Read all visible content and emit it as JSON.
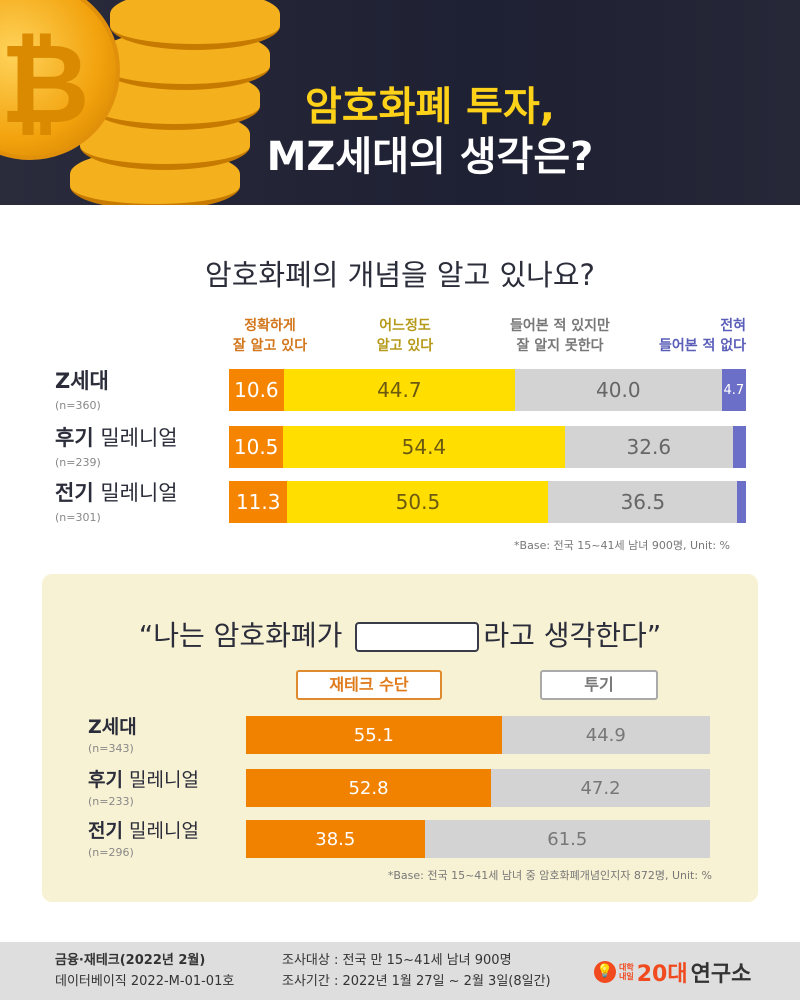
{
  "header": {
    "title_line1": "암호화폐 투자,",
    "title_line2": "MZ세대의 생각은?"
  },
  "chart_data": [
    {
      "type": "bar",
      "orientation": "horizontal",
      "stacked": true,
      "title": "암호화폐의 개념을 알고 있나요?",
      "categories": [
        {
          "bold": "Z세대",
          "light": "",
          "n": "(n=360)"
        },
        {
          "bold": "후기",
          "light": " 밀레니얼",
          "n": "(n=239)"
        },
        {
          "bold": "전기",
          "light": " 밀레니얼",
          "n": "(n=301)"
        }
      ],
      "series": [
        {
          "name": "정확하게\n잘 알고 있다",
          "color": "#f58400",
          "text_color": "#ffffff",
          "label_color": "#d2761b",
          "values": [
            10.6,
            10.5,
            11.3
          ],
          "labels": [
            "10.6",
            "10.5",
            "11.3"
          ]
        },
        {
          "name": "어느정도\n알고 있다",
          "color": "#ffde00",
          "text_color": "#6b5a10",
          "label_color": "#b59a1a",
          "values": [
            44.7,
            54.4,
            50.5
          ],
          "labels": [
            "44.7",
            "54.4",
            "50.5"
          ]
        },
        {
          "name": "들어본 적 있지만\n잘 알지 못한다",
          "color": "#d3d3d3",
          "text_color": "#666666",
          "label_color": "#777777",
          "values": [
            40.0,
            32.6,
            36.5
          ],
          "labels": [
            "40.0",
            "32.6",
            "36.5"
          ]
        },
        {
          "name": "전혀\n들어본 적 없다",
          "color": "#6b6fc8",
          "text_color": "#ffffff",
          "label_color": "#5a5eb8",
          "values": [
            4.7,
            2.5,
            1.7
          ],
          "labels": [
            "4.7",
            "",
            ""
          ]
        }
      ],
      "note": "*Base: 전국 15~41세 남녀 900명, Unit: %"
    },
    {
      "type": "bar",
      "orientation": "horizontal",
      "stacked": true,
      "title_before": "“나는 암호화폐가",
      "title_after": "라고 생각한다”",
      "categories": [
        {
          "bold": "Z세대",
          "light": "",
          "n": "(n=343)"
        },
        {
          "bold": "후기",
          "light": " 밀레니얼",
          "n": "(n=233)"
        },
        {
          "bold": "전기",
          "light": " 밀레니얼",
          "n": "(n=296)"
        }
      ],
      "series": [
        {
          "name": "재테크 수단",
          "color": "#f08200",
          "text_color": "#ffffff",
          "label_color": "#e07a1a",
          "values": [
            55.1,
            52.8,
            38.5
          ],
          "labels": [
            "55.1",
            "52.8",
            "38.5"
          ]
        },
        {
          "name": "투기",
          "color": "#d3d3d3",
          "text_color": "#777777",
          "label_color": "#777777",
          "values": [
            44.9,
            47.2,
            61.5
          ],
          "labels": [
            "44.9",
            "47.2",
            "61.5"
          ]
        }
      ],
      "note": "*Base: 전국 15~41세 남녀 중 암호화폐개념인지자 872명, Unit: %"
    }
  ],
  "footer": {
    "category": "금융·재테크(2022년 2월)",
    "db": "데이터베이직 2022-M-01-01호",
    "target": "조사대상 : 전국 만 15~41세 남녀 900명",
    "period": "조사기간 : 2022년 1월 27일 ~ 2월 3일(8일간)",
    "logo_small1": "대학",
    "logo_small2": "내일",
    "logo_20": "20대",
    "logo_rest": "연구소"
  }
}
